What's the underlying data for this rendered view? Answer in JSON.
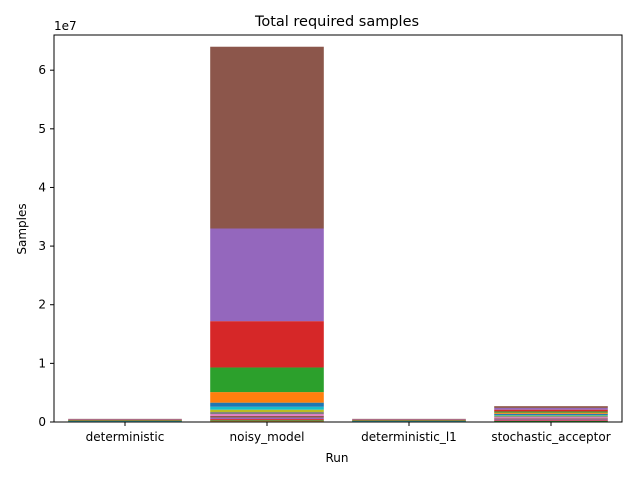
{
  "chart_data": {
    "type": "bar",
    "stacked": true,
    "title": "Total required samples",
    "xlabel": "Run",
    "ylabel": "Samples",
    "offset_label": "1e7",
    "categories": [
      "deterministic",
      "noisy_model",
      "deterministic_l1",
      "stochastic_acceptor"
    ],
    "ylim": [
      0,
      66000000
    ],
    "yticks": [
      0,
      10000000,
      20000000,
      30000000,
      40000000,
      50000000,
      60000000
    ],
    "ytick_labels": [
      "0",
      "1",
      "2",
      "3",
      "4",
      "5",
      "6"
    ],
    "grid": false,
    "series": [
      {
        "color": "#1f77b4",
        "values": [
          3000,
          50000,
          3000,
          30000
        ]
      },
      {
        "color": "#ff7f0e",
        "values": [
          5000,
          100000,
          5000,
          60000
        ]
      },
      {
        "color": "#2ca02c",
        "values": [
          8000,
          150000,
          8000,
          80000
        ]
      },
      {
        "color": "#d62728",
        "values": [
          10000,
          200000,
          10000,
          120000
        ]
      },
      {
        "color": "#9467bd",
        "values": [
          15000,
          250000,
          15000,
          150000
        ]
      },
      {
        "color": "#8c564b",
        "values": [
          20000,
          300000,
          20000,
          180000
        ]
      },
      {
        "color": "#e377c2",
        "values": [
          25000,
          300000,
          25000,
          200000
        ]
      },
      {
        "color": "#7f7f7f",
        "values": [
          30000,
          350000,
          30000,
          180000
        ]
      },
      {
        "color": "#bcbd22",
        "values": [
          35000,
          400000,
          35000,
          100000
        ]
      },
      {
        "color": "#17becf",
        "values": [
          40000,
          500000,
          40000,
          100000
        ]
      },
      {
        "color": "#1f77b4",
        "values": [
          45000,
          700000,
          45000,
          200000
        ]
      },
      {
        "color": "#ff7f0e",
        "values": [
          50000,
          1800000,
          50000,
          200000
        ]
      },
      {
        "color": "#2ca02c",
        "values": [
          55000,
          4200000,
          55000,
          200000
        ]
      },
      {
        "color": "#d62728",
        "values": [
          60000,
          7900000,
          60000,
          300000
        ]
      },
      {
        "color": "#9467bd",
        "values": [
          65000,
          15800000,
          65000,
          300000
        ]
      },
      {
        "color": "#8c564b",
        "values": [
          70000,
          31000000,
          70000,
          300000
        ]
      }
    ]
  }
}
